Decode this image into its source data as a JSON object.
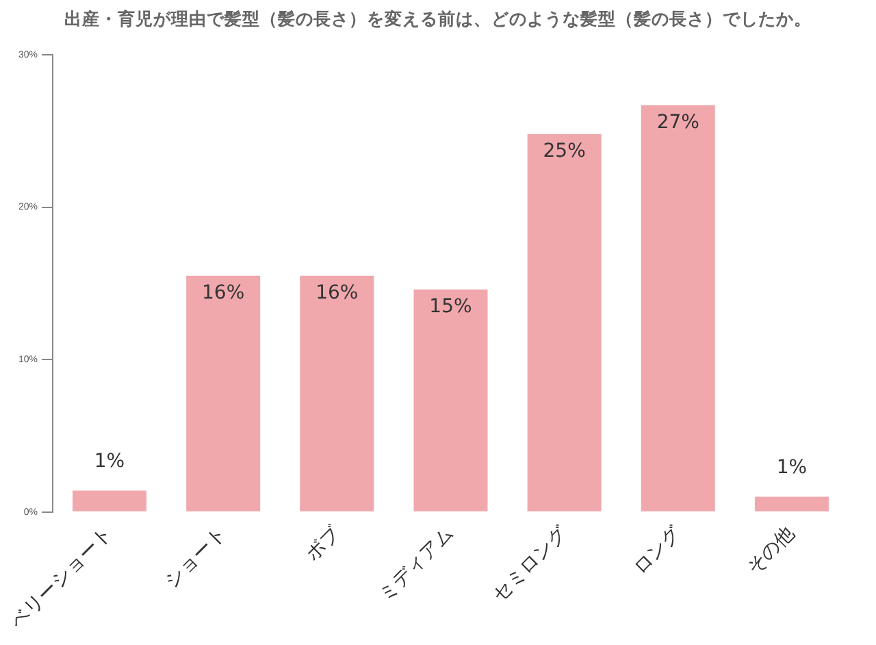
{
  "chart_data": {
    "type": "bar",
    "title": "出産・育児が理由で髪型（髪の長さ）を変える前は、どのような髪型（髪の長さ）でしたか。",
    "categories": [
      "ベリーショート",
      "ショート",
      "ボブ",
      "ミディアム",
      "セミロング",
      "ロング",
      "その他"
    ],
    "values": [
      1.4,
      15.5,
      15.5,
      14.6,
      24.8,
      26.7,
      1.0
    ],
    "value_labels": [
      "1%",
      "16%",
      "16%",
      "15%",
      "25%",
      "27%",
      "1%"
    ],
    "color": "#f0a8ad",
    "ylim": [
      0,
      30
    ],
    "yticks": [
      {
        "value": 0,
        "label": "0%"
      },
      {
        "value": 10,
        "label": "10%"
      },
      {
        "value": 20,
        "label": "20%"
      },
      {
        "value": 30,
        "label": "30%"
      }
    ],
    "grid": false,
    "legend": false
  }
}
